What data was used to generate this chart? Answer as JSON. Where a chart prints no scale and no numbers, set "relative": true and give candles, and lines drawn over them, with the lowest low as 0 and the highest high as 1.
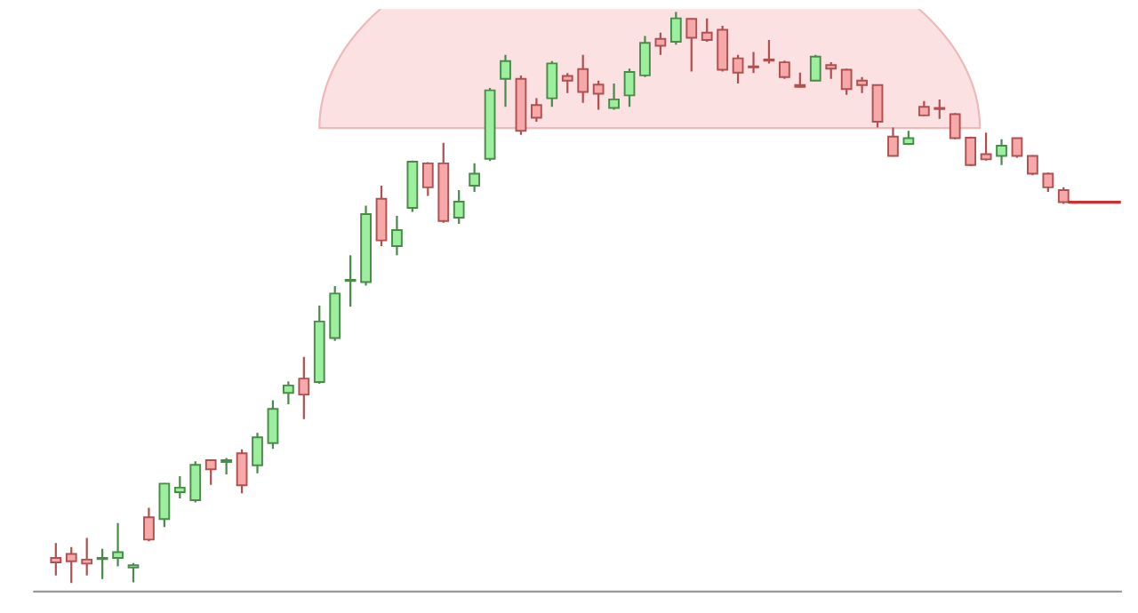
{
  "chart_data": {
    "type": "candlestick",
    "relative": true,
    "categories": [
      null,
      null,
      null,
      null,
      null,
      null,
      null,
      null,
      null,
      null,
      null,
      null,
      null,
      null,
      null,
      null,
      null,
      null,
      null,
      null,
      null,
      null,
      null,
      null,
      null,
      null,
      null,
      null,
      null,
      null,
      null,
      null,
      null,
      null,
      null,
      null,
      null,
      null,
      null,
      null,
      null,
      null,
      null,
      null,
      null,
      null,
      null,
      null,
      null,
      null,
      null,
      null,
      null,
      null,
      null,
      null,
      null,
      null,
      null,
      null,
      null,
      null,
      null,
      null,
      null,
      null
    ],
    "ohlc": [
      [
        0.044,
        0.07,
        0.013,
        0.036
      ],
      [
        0.051,
        0.063,
        0.0,
        0.038
      ],
      [
        0.041,
        0.079,
        0.013,
        0.034
      ],
      [
        0.042,
        0.06,
        0.007,
        0.044
      ],
      [
        0.044,
        0.105,
        0.029,
        0.054
      ],
      [
        0.027,
        0.035,
        0.001,
        0.031
      ],
      [
        0.115,
        0.132,
        0.073,
        0.076
      ],
      [
        0.112,
        0.175,
        0.098,
        0.174
      ],
      [
        0.159,
        0.187,
        0.148,
        0.167
      ],
      [
        0.145,
        0.213,
        0.141,
        0.207
      ],
      [
        0.215,
        0.216,
        0.172,
        0.199
      ],
      [
        0.212,
        0.219,
        0.19,
        0.215
      ],
      [
        0.227,
        0.234,
        0.157,
        0.171
      ],
      [
        0.206,
        0.263,
        0.192,
        0.255
      ],
      [
        0.245,
        0.32,
        0.235,
        0.305
      ],
      [
        0.333,
        0.353,
        0.313,
        0.346
      ],
      [
        0.358,
        0.396,
        0.287,
        0.33
      ],
      [
        0.352,
        0.486,
        0.349,
        0.458
      ],
      [
        0.429,
        0.52,
        0.424,
        0.507
      ],
      [
        0.529,
        0.574,
        0.484,
        0.531
      ],
      [
        0.527,
        0.661,
        0.521,
        0.646
      ],
      [
        0.673,
        0.696,
        0.59,
        0.6
      ],
      [
        0.59,
        0.643,
        0.574,
        0.618
      ],
      [
        0.657,
        0.74,
        0.65,
        0.738
      ],
      [
        0.735,
        0.737,
        0.678,
        0.693
      ],
      [
        0.735,
        0.771,
        0.631,
        0.634
      ],
      [
        0.64,
        0.688,
        0.629,
        0.668
      ],
      [
        0.696,
        0.735,
        0.685,
        0.717
      ],
      [
        0.743,
        0.867,
        0.739,
        0.863
      ],
      [
        0.883,
        0.925,
        0.834,
        0.914
      ],
      [
        0.883,
        0.889,
        0.785,
        0.792
      ],
      [
        0.837,
        0.849,
        0.808,
        0.815
      ],
      [
        0.849,
        0.914,
        0.834,
        0.91
      ],
      [
        0.888,
        0.893,
        0.858,
        0.88
      ],
      [
        0.9,
        0.925,
        0.841,
        0.86
      ],
      [
        0.873,
        0.88,
        0.829,
        0.857
      ],
      [
        0.832,
        0.875,
        0.829,
        0.847
      ],
      [
        0.854,
        0.901,
        0.834,
        0.895
      ],
      [
        0.889,
        0.958,
        0.886,
        0.946
      ],
      [
        0.953,
        0.964,
        0.925,
        0.941
      ],
      [
        0.948,
        1.0,
        0.943,
        0.989
      ],
      [
        0.988,
        0.989,
        0.896,
        0.955
      ],
      [
        0.964,
        0.989,
        0.948,
        0.951
      ],
      [
        0.969,
        0.976,
        0.896,
        0.899
      ],
      [
        0.919,
        0.925,
        0.875,
        0.894
      ],
      [
        0.904,
        0.93,
        0.893,
        0.903
      ],
      [
        0.917,
        0.951,
        0.91,
        0.915
      ],
      [
        0.912,
        0.915,
        0.883,
        0.886
      ],
      [
        0.872,
        0.894,
        0.868,
        0.869
      ],
      [
        0.88,
        0.925,
        0.879,
        0.922
      ],
      [
        0.907,
        0.912,
        0.883,
        0.901
      ],
      [
        0.899,
        0.901,
        0.855,
        0.865
      ],
      [
        0.88,
        0.886,
        0.858,
        0.872
      ],
      [
        0.872,
        0.873,
        0.798,
        0.808
      ],
      [
        0.782,
        0.798,
        0.747,
        0.748
      ],
      [
        0.769,
        0.792,
        0.767,
        0.779
      ],
      [
        0.834,
        0.844,
        0.818,
        0.819
      ],
      [
        0.831,
        0.847,
        0.813,
        0.83
      ],
      [
        0.821,
        0.823,
        0.777,
        0.779
      ],
      [
        0.78,
        0.782,
        0.73,
        0.732
      ],
      [
        0.751,
        0.789,
        0.74,
        0.742
      ],
      [
        0.748,
        0.777,
        0.732,
        0.766
      ],
      [
        0.779,
        0.78,
        0.745,
        0.748
      ],
      [
        0.748,
        0.749,
        0.714,
        0.717
      ],
      [
        0.717,
        0.719,
        0.685,
        0.693
      ],
      [
        0.688,
        0.693,
        0.664,
        0.667
      ]
    ]
  }
}
